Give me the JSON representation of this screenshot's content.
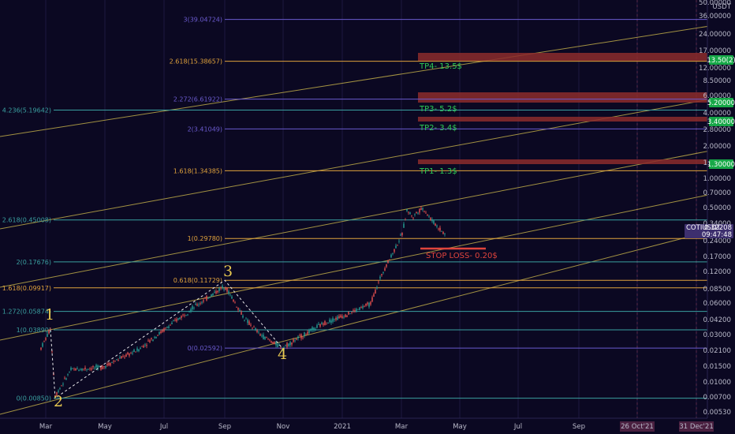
{
  "chart_data": {
    "type": "candlestick",
    "symbol_label": "COTIUSDT",
    "currency_label": "USDT",
    "last_price": "0.32208",
    "countdown": "09:47:48",
    "x_ticks": [
      "Mar",
      "May",
      "Jul",
      "Sep",
      "Nov",
      "2021",
      "Mar",
      "May",
      "Jul",
      "Sep",
      "26 Oct'21",
      "31 Dec'21"
    ],
    "y_ticks": [
      "50.00000",
      "36.00000",
      "24.00000",
      "17.00000",
      "12.00000",
      "8.50000",
      "6.00000",
      "4.00000",
      "2.80000",
      "2.00000",
      "1.40000",
      "1.00000",
      "0.70000",
      "0.50000",
      "0.34000",
      "0.24000",
      "0.17000",
      "0.12000",
      "0.08500",
      "0.06000",
      "0.04200",
      "0.03000",
      "0.02100",
      "0.01500",
      "0.01000",
      "0.00700",
      "0.00530"
    ],
    "price_badges": [
      {
        "text": "13.50(2)",
        "color": "#17a848"
      },
      {
        "text": "5.20000",
        "color": "#17a848"
      },
      {
        "text": "3.40000",
        "color": "#17a848"
      },
      {
        "text": "1.30000",
        "color": "#17a848"
      }
    ],
    "fib_extension": [
      {
        "label": "3(39.04724)",
        "price": 39.04724,
        "color": "#6a5acd"
      },
      {
        "label": "2.618(15.38657)",
        "price": 15.38657,
        "color": "#e0a23c"
      },
      {
        "label": "2.272(6.61922)",
        "price": 6.61922,
        "color": "#6a5acd"
      },
      {
        "label": "2(3.41049)",
        "price": 3.41049,
        "color": "#6a5acd"
      },
      {
        "label": "1.618(1.34385)",
        "price": 1.34385,
        "color": "#e0a23c"
      },
      {
        "label": "1(0.29780)",
        "price": 0.2978,
        "color": "#e0a23c"
      },
      {
        "label": "0.618(0.11729)",
        "price": 0.11729,
        "color": "#e0a23c"
      },
      {
        "label": "0(0.02592)",
        "price": 0.02592,
        "color": "#6a5acd"
      }
    ],
    "fib_retracement": [
      {
        "label": "4.236(5.19642)",
        "price": 5.19642,
        "color": "#3aa0a0"
      },
      {
        "label": "2.618(0.45008)",
        "price": 0.45008,
        "color": "#3aa0a0"
      },
      {
        "label": "2(0.17676)",
        "price": 0.17676,
        "color": "#3aa0a0"
      },
      {
        "label": "1.618(0.09917)",
        "price": 0.09917,
        "color": "#e0a23c"
      },
      {
        "label": "1.272(0.05874)",
        "price": 0.05874,
        "color": "#3aa0a0"
      },
      {
        "label": "1(0.03890)",
        "price": 0.0389,
        "color": "#3aa0a0"
      },
      {
        "label": "0(0.00850)",
        "price": 0.0085,
        "color": "#3aa0a0"
      }
    ],
    "targets": [
      {
        "label": "TP4- 13.5$",
        "price": 13.5
      },
      {
        "label": "TP3- 5.2$",
        "price": 5.2
      },
      {
        "label": "TP2- 3.4$",
        "price": 3.4
      },
      {
        "label": "TP1- 1.3$",
        "price": 1.3
      }
    ],
    "stop_loss": {
      "label": "STOP LOSS- 0.20$",
      "price": 0.2
    },
    "waves": [
      {
        "label": "1",
        "price": 0.039
      },
      {
        "label": "2",
        "price": 0.0085
      },
      {
        "label": "3",
        "price": 0.11729
      },
      {
        "label": "4",
        "price": 0.02592
      }
    ],
    "colors": {
      "background": "#0b0822",
      "up": "#26a69a",
      "down": "#ef5350",
      "target_zone": "#8c2c2c",
      "channel": "#c8b44a",
      "label_badge": "#3d2f6e"
    }
  }
}
